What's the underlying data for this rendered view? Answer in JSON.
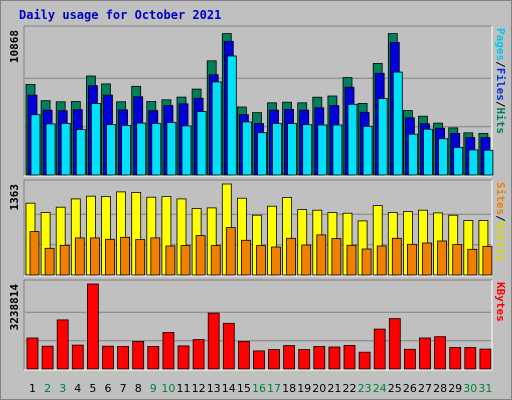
{
  "chart_data": {
    "type": "bar",
    "title": "Daily usage for October 2021",
    "x": [
      "1",
      "2",
      "3",
      "4",
      "5",
      "6",
      "7",
      "8",
      "9",
      "10",
      "11",
      "12",
      "13",
      "14",
      "15",
      "16",
      "17",
      "18",
      "19",
      "20",
      "21",
      "22",
      "23",
      "24",
      "25",
      "26",
      "27",
      "28",
      "29",
      "30",
      "31"
    ],
    "weekend_days": [
      2,
      3,
      9,
      10,
      16,
      17,
      23,
      24,
      30,
      31
    ],
    "panels": [
      {
        "name": "hits-files-pages",
        "ymax_label": "10868",
        "ymax": 10868,
        "legend": [
          "Pages",
          "/",
          "Files",
          "/",
          "Hits"
        ],
        "legend_colors": [
          "#00c8f0",
          "#000000",
          "#0030e0",
          "#000000",
          "#008060"
        ],
        "series": [
          {
            "name": "Hits",
            "color": "#00805c",
            "values": [
              6790,
              5570,
              5490,
              5510,
              7420,
              6830,
              5490,
              6650,
              5510,
              5640,
              5840,
              6440,
              8560,
              10600,
              5100,
              4680,
              5410,
              5460,
              5410,
              5830,
              5920,
              7300,
              5370,
              8360,
              10600,
              4830,
              4410,
              3890,
              3530,
              3160,
              3120
            ]
          },
          {
            "name": "Files",
            "color": "#0000dc",
            "values": [
              5980,
              4860,
              4820,
              4900,
              6700,
              5990,
              4880,
              5860,
              4820,
              5210,
              5340,
              5760,
              7520,
              10020,
              4530,
              3860,
              4860,
              4920,
              4860,
              5040,
              5200,
              6580,
              4700,
              7620,
              9940,
              4290,
              3840,
              3510,
              3120,
              2810,
              2800
            ]
          },
          {
            "name": "Pages",
            "color": "#00e0f8",
            "values": [
              4520,
              3830,
              3870,
              3400,
              5370,
              3780,
              3720,
              3890,
              3860,
              3930,
              3680,
              4760,
              6980,
              8920,
              3980,
              3170,
              3860,
              3850,
              3770,
              3750,
              3750,
              5300,
              3650,
              5730,
              7710,
              3060,
              3430,
              2720,
              2070,
              1880,
              1850
            ]
          }
        ]
      },
      {
        "name": "visits-sites",
        "ymax_label": "1363",
        "ymax": 1363,
        "legend": [
          "Sites",
          "/",
          "Visits"
        ],
        "legend_colors": [
          "#f08000",
          "#000000",
          "#d8d800"
        ],
        "series": [
          {
            "name": "Visits",
            "color": "#ffff00",
            "values": [
              1075,
              935,
              1015,
              1140,
              1180,
              1175,
              1245,
              1235,
              1165,
              1175,
              1140,
              995,
              1005,
              1363,
              1150,
              895,
              1030,
              1160,
              980,
              970,
              935,
              925,
              810,
              1040,
              935,
              950,
              970,
              930,
              895,
              815,
              815
            ]
          },
          {
            "name": "Sites",
            "color": "#f08000",
            "values": [
              650,
              400,
              445,
              555,
              555,
              535,
              565,
              530,
              555,
              435,
              440,
              590,
              440,
              710,
              520,
              440,
              420,
              550,
              450,
              600,
              545,
              445,
              390,
              435,
              550,
              460,
              480,
              510,
              455,
              385,
              430
            ]
          }
        ]
      },
      {
        "name": "kbytes",
        "ymax_label": "3238814",
        "ymax": 3238814,
        "legend": [
          "KBytes"
        ],
        "legend_colors": [
          "#ff0000"
        ],
        "series": [
          {
            "name": "KBytes",
            "color": "#ff0000",
            "values": [
              1180000,
              870000,
              1870000,
              910000,
              3238814,
              870000,
              860000,
              1050000,
              860000,
              1390000,
              880000,
              1120000,
              2130000,
              1740000,
              1050000,
              690000,
              740000,
              890000,
              740000,
              860000,
              840000,
              900000,
              640000,
              1520000,
              1920000,
              750000,
              1180000,
              1230000,
              820000,
              820000,
              760000
            ]
          }
        ]
      }
    ]
  }
}
